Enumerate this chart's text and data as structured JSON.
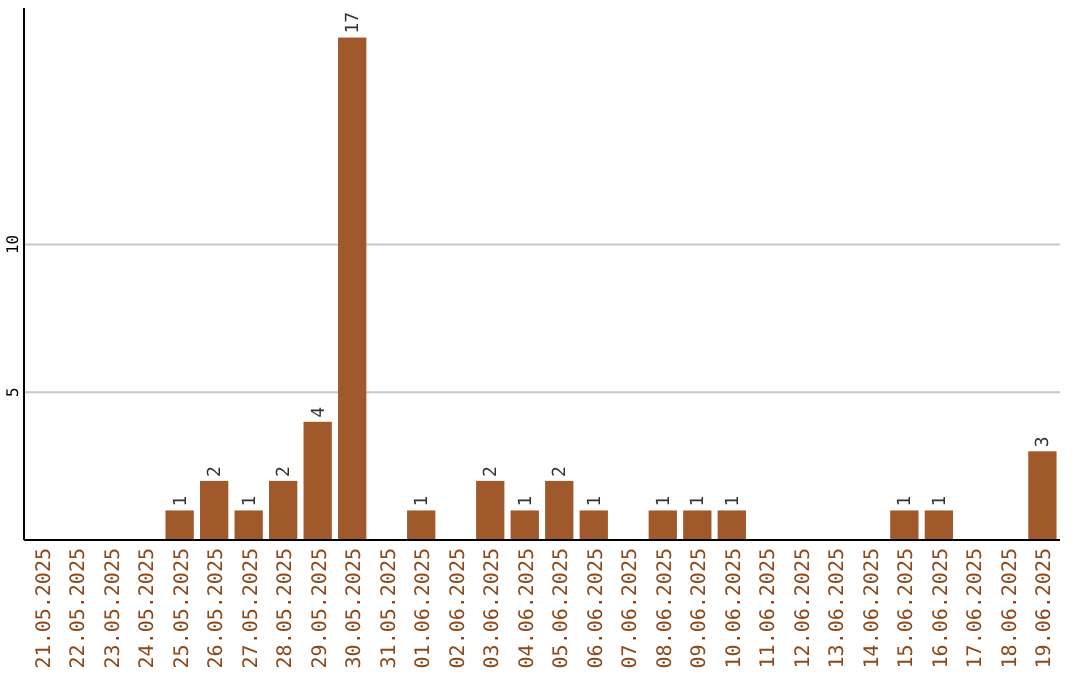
{
  "chart_data": {
    "type": "bar",
    "categories": [
      "21.05.2025",
      "22.05.2025",
      "23.05.2025",
      "24.05.2025",
      "25.05.2025",
      "26.05.2025",
      "27.05.2025",
      "28.05.2025",
      "29.05.2025",
      "30.05.2025",
      "31.05.2025",
      "01.06.2025",
      "02.06.2025",
      "03.06.2025",
      "04.06.2025",
      "05.06.2025",
      "06.06.2025",
      "07.06.2025",
      "08.06.2025",
      "09.06.2025",
      "10.06.2025",
      "11.06.2025",
      "12.06.2025",
      "13.06.2025",
      "14.06.2025",
      "15.06.2025",
      "16.06.2025",
      "17.06.2025",
      "18.06.2025",
      "19.06.2025"
    ],
    "values": [
      0,
      0,
      0,
      0,
      1,
      2,
      1,
      2,
      4,
      17,
      0,
      1,
      0,
      2,
      1,
      2,
      1,
      0,
      1,
      1,
      1,
      0,
      0,
      0,
      0,
      1,
      1,
      0,
      0,
      3
    ],
    "value_labels": [
      null,
      null,
      null,
      null,
      "1",
      "2",
      "1",
      "2",
      "4",
      "17",
      null,
      "1",
      null,
      "2",
      "1",
      "2",
      "1",
      null,
      "1",
      "1",
      "1",
      null,
      null,
      null,
      null,
      "1",
      "1",
      null,
      null,
      "3"
    ],
    "color": "#a0592a",
    "ylim": [
      0,
      18
    ],
    "yticks": [
      5,
      10
    ],
    "grid": "y"
  }
}
